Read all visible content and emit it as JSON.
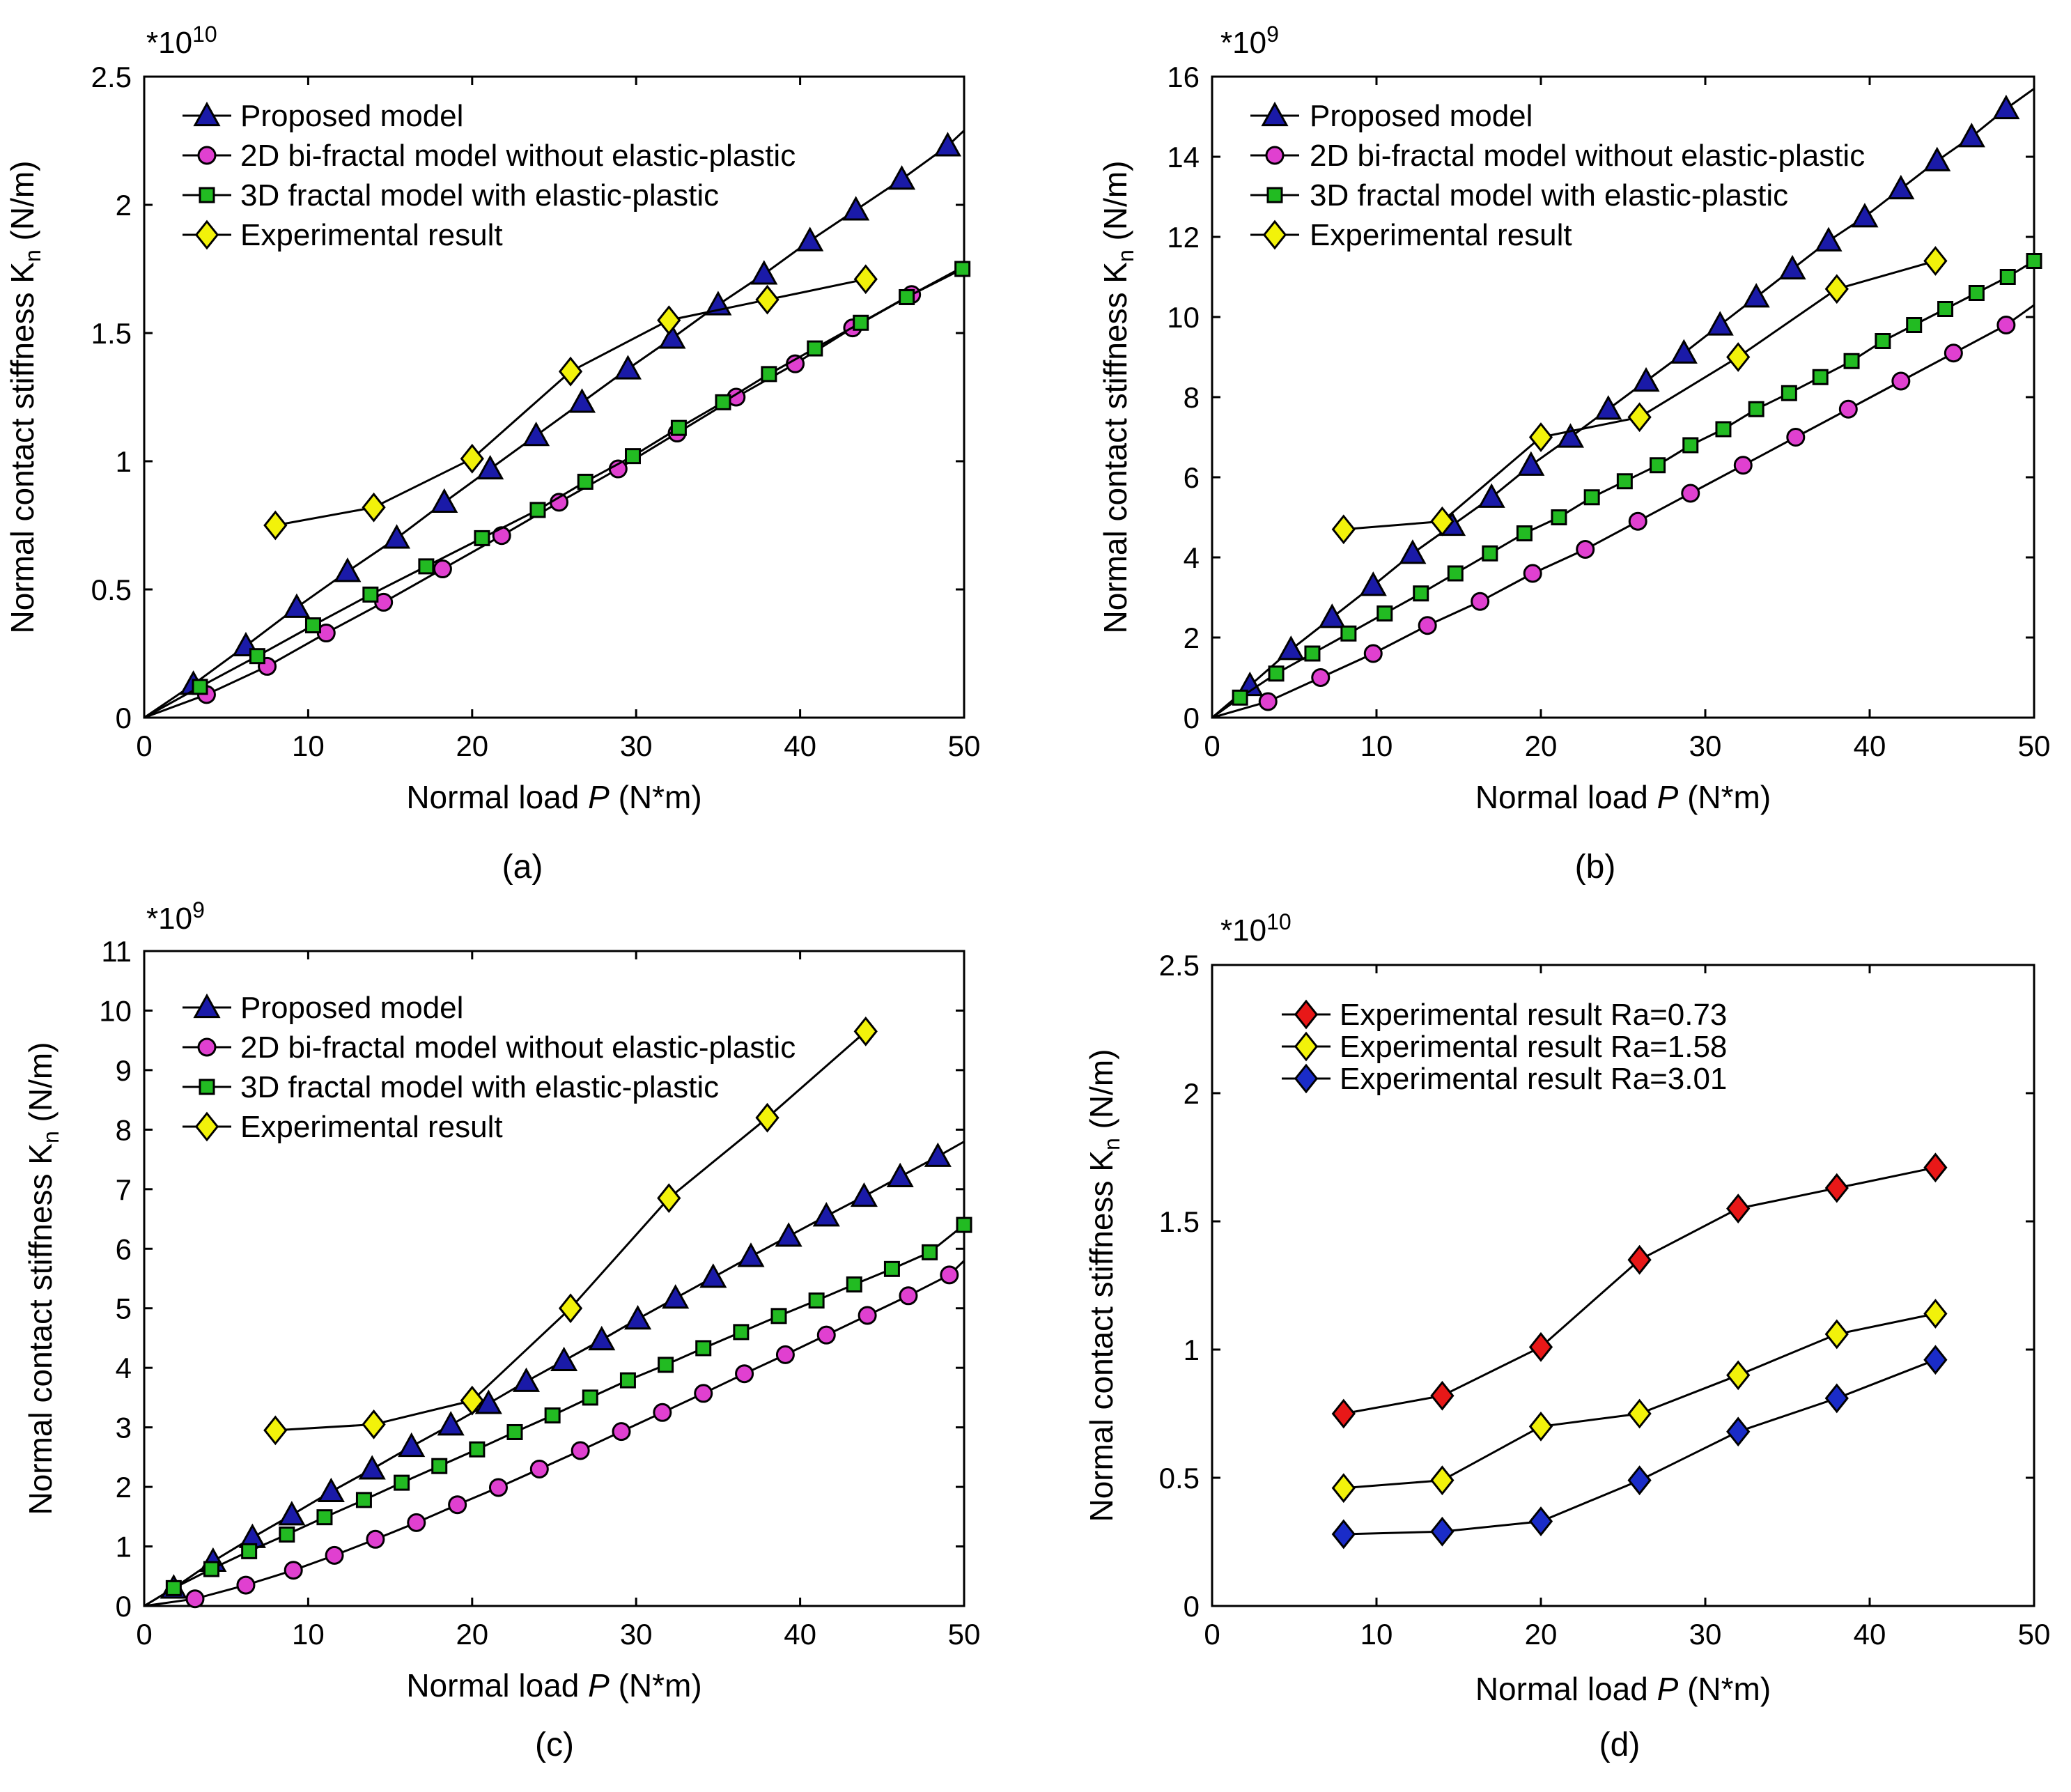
{
  "chart_data": [
    {
      "type": "line",
      "caption": "(a)",
      "multiplier": "*10",
      "multiplier_exp": "10",
      "xlabel": "Normal load P (N*m)",
      "xlabel_parts": [
        "Normal load ",
        "P",
        " (N*m)"
      ],
      "ylabel": "Normal contact stiffness Kn (N/m)",
      "ylabel_parts": [
        "Normal contact stiffness K",
        "n",
        " (N/m)"
      ],
      "xlim": [
        0,
        50
      ],
      "ylim": [
        0,
        2.5
      ],
      "xticks": [
        0,
        10,
        20,
        30,
        40,
        50
      ],
      "xtick_labels": [
        "0",
        "10",
        "20",
        "30",
        "40",
        "50"
      ],
      "yticks": [
        0,
        0.5,
        1,
        1.5,
        2,
        2.5
      ],
      "ytick_labels": [
        "0",
        "0.5",
        "1",
        "1.5",
        "2",
        "2.5"
      ],
      "legend_position": "top-left",
      "series": [
        {
          "name": "Proposed model",
          "marker": "triangle",
          "color": "#1a1aa8",
          "x": [
            0,
            3,
            6.2,
            9.3,
            12.4,
            15.4,
            18.3,
            21.1,
            23.9,
            26.7,
            29.5,
            32.2,
            35,
            37.8,
            40.6,
            43.4,
            46.2,
            49,
            50
          ],
          "y": [
            0,
            0.13,
            0.28,
            0.43,
            0.57,
            0.7,
            0.84,
            0.97,
            1.1,
            1.23,
            1.36,
            1.48,
            1.61,
            1.73,
            1.86,
            1.98,
            2.1,
            2.23,
            2.29
          ]
        },
        {
          "name": "2D bi-fractal model without elastic-plastic",
          "marker": "circle",
          "color": "#e040d0",
          "x": [
            0,
            3.8,
            7.5,
            11.1,
            14.6,
            18.2,
            21.8,
            25.3,
            28.9,
            32.5,
            36.1,
            39.7,
            43.2,
            46.8,
            50
          ],
          "y": [
            0,
            0.09,
            0.2,
            0.33,
            0.45,
            0.58,
            0.71,
            0.84,
            0.97,
            1.11,
            1.25,
            1.38,
            1.52,
            1.65,
            1.76
          ]
        },
        {
          "name": "3D fractal model with elastic-plastic",
          "marker": "square",
          "color": "#22bb22",
          "x": [
            0,
            3.4,
            6.9,
            10.3,
            13.8,
            17.2,
            20.6,
            24,
            26.9,
            29.8,
            32.6,
            35.3,
            38.1,
            40.9,
            43.7,
            46.5,
            49.9
          ],
          "y": [
            0,
            0.12,
            0.24,
            0.36,
            0.48,
            0.59,
            0.7,
            0.81,
            0.92,
            1.02,
            1.13,
            1.23,
            1.34,
            1.44,
            1.54,
            1.64,
            1.75
          ]
        },
        {
          "name": "Experimental result",
          "marker": "diamond",
          "color": "#f2f20a",
          "x": [
            8,
            14,
            20,
            26,
            32,
            38,
            44
          ],
          "y": [
            0.75,
            0.82,
            1.01,
            1.35,
            1.55,
            1.63,
            1.71
          ]
        }
      ]
    },
    {
      "type": "line",
      "caption": "(b)",
      "multiplier": "*10",
      "multiplier_exp": "9",
      "xlabel": "Normal load P (N*m)",
      "xlabel_parts": [
        "Normal load ",
        "P",
        " (N*m)"
      ],
      "ylabel": "Normal contact stiffness Kn (N/m)",
      "ylabel_parts": [
        "Normal contact stiffness K",
        "n",
        " (N/m)"
      ],
      "xlim": [
        0,
        50
      ],
      "ylim": [
        0,
        16
      ],
      "xticks": [
        0,
        10,
        20,
        30,
        40,
        50
      ],
      "xtick_labels": [
        "0",
        "10",
        "20",
        "30",
        "40",
        "50"
      ],
      "yticks": [
        0,
        2,
        4,
        6,
        8,
        10,
        12,
        14,
        16
      ],
      "ytick_labels": [
        "0",
        "2",
        "4",
        "6",
        "8",
        "10",
        "12",
        "14",
        "16"
      ],
      "legend_position": "top-left",
      "series": [
        {
          "name": "Proposed model",
          "marker": "triangle",
          "color": "#1a1aa8",
          "x": [
            0,
            2.3,
            4.8,
            7.3,
            9.8,
            12.2,
            14.6,
            17,
            19.4,
            21.8,
            24.1,
            26.4,
            28.7,
            30.9,
            33.1,
            35.3,
            37.5,
            39.7,
            41.9,
            44.1,
            46.2,
            48.3,
            50
          ],
          "y": [
            0,
            0.8,
            1.7,
            2.5,
            3.3,
            4.1,
            4.8,
            5.5,
            6.3,
            7,
            7.7,
            8.4,
            9.1,
            9.8,
            10.5,
            11.2,
            11.9,
            12.5,
            13.2,
            13.9,
            14.5,
            15.2,
            15.7
          ]
        },
        {
          "name": "2D bi-fractal model without elastic-plastic",
          "marker": "circle",
          "color": "#e040d0",
          "x": [
            0,
            3.4,
            6.6,
            9.8,
            13.1,
            16.3,
            19.5,
            22.7,
            25.9,
            29.1,
            32.3,
            35.5,
            38.7,
            41.9,
            45.1,
            48.3,
            50
          ],
          "y": [
            0,
            0.4,
            1,
            1.6,
            2.3,
            2.9,
            3.6,
            4.2,
            4.9,
            5.6,
            6.3,
            7,
            7.7,
            8.4,
            9.1,
            9.8,
            10.3
          ]
        },
        {
          "name": "3D fractal model with elastic-plastic",
          "marker": "square",
          "color": "#22bb22",
          "x": [
            0,
            1.7,
            3.9,
            6.1,
            8.3,
            10.5,
            12.7,
            14.8,
            16.9,
            19,
            21.1,
            23.1,
            25.1,
            27.1,
            29.1,
            31.1,
            33.1,
            35.1,
            37,
            38.9,
            40.8,
            42.7,
            44.6,
            46.5,
            48.4,
            50
          ],
          "y": [
            0,
            0.5,
            1.1,
            1.6,
            2.1,
            2.6,
            3.1,
            3.6,
            4.1,
            4.6,
            5,
            5.5,
            5.9,
            6.3,
            6.8,
            7.2,
            7.7,
            8.1,
            8.5,
            8.9,
            9.4,
            9.8,
            10.2,
            10.6,
            11,
            11.4
          ]
        },
        {
          "name": "Experimental result",
          "marker": "diamond",
          "color": "#f2f20a",
          "x": [
            8,
            14,
            20,
            26,
            32,
            38,
            44
          ],
          "y": [
            4.7,
            4.9,
            7,
            7.5,
            9,
            10.7,
            11.4
          ]
        }
      ]
    },
    {
      "type": "line",
      "caption": "(c)",
      "multiplier": "*10",
      "multiplier_exp": "9",
      "xlabel": "Normal load P (N*m)",
      "xlabel_parts": [
        "Normal load ",
        "P",
        " (N*m)"
      ],
      "ylabel": "Normal contact stiffness Kn (N/m)",
      "ylabel_parts": [
        "Normal contact stiffness K",
        "n",
        " (N/m)"
      ],
      "xlim": [
        0,
        50
      ],
      "ylim": [
        0,
        11
      ],
      "xticks": [
        0,
        10,
        20,
        30,
        40,
        50
      ],
      "xtick_labels": [
        "0",
        "10",
        "20",
        "30",
        "40",
        "50"
      ],
      "yticks": [
        0,
        1,
        2,
        3,
        4,
        5,
        6,
        7,
        8,
        9,
        10,
        11
      ],
      "ytick_labels": [
        "0",
        "1",
        "2",
        "3",
        "4",
        "5",
        "6",
        "7",
        "8",
        "9",
        "10",
        "11"
      ],
      "legend_position": "top-left",
      "series": [
        {
          "name": "Proposed model",
          "marker": "triangle",
          "color": "#1a1aa8",
          "x": [
            0,
            1.8,
            4.2,
            6.6,
            9,
            11.4,
            13.9,
            16.3,
            18.7,
            21,
            23.3,
            25.6,
            27.9,
            30.1,
            32.4,
            34.7,
            37,
            39.3,
            41.6,
            43.9,
            46.1,
            48.4,
            50
          ],
          "y": [
            0,
            0.3,
            0.75,
            1.15,
            1.53,
            1.92,
            2.3,
            2.68,
            3.04,
            3.4,
            3.77,
            4.12,
            4.47,
            4.82,
            5.17,
            5.52,
            5.87,
            6.21,
            6.55,
            6.88,
            7.21,
            7.55,
            7.8
          ]
        },
        {
          "name": "2D bi-fractal model without elastic-plastic",
          "marker": "circle",
          "color": "#e040d0",
          "x": [
            0,
            3.1,
            6.2,
            9.1,
            11.6,
            14.1,
            16.6,
            19.1,
            21.6,
            24.1,
            26.6,
            29.1,
            31.6,
            34.1,
            36.6,
            39.1,
            41.6,
            44.1,
            46.6,
            49.1,
            50
          ],
          "y": [
            0,
            0.12,
            0.35,
            0.6,
            0.85,
            1.12,
            1.4,
            1.7,
            1.99,
            2.3,
            2.61,
            2.93,
            3.25,
            3.57,
            3.9,
            4.22,
            4.55,
            4.88,
            5.21,
            5.56,
            5.8
          ]
        },
        {
          "name": "3D fractal model with elastic-plastic",
          "marker": "square",
          "color": "#22bb22",
          "x": [
            0,
            1.8,
            4.1,
            6.4,
            8.7,
            11,
            13.4,
            15.7,
            18,
            20.3,
            22.6,
            24.9,
            27.2,
            29.5,
            31.8,
            34.1,
            36.4,
            38.7,
            41,
            43.3,
            45.6,
            47.9,
            50
          ],
          "y": [
            0,
            0.3,
            0.62,
            0.92,
            1.2,
            1.49,
            1.78,
            2.07,
            2.35,
            2.63,
            2.92,
            3.2,
            3.5,
            3.79,
            4.05,
            4.33,
            4.6,
            4.87,
            5.13,
            5.4,
            5.66,
            5.94,
            6.4
          ]
        },
        {
          "name": "Experimental result",
          "marker": "diamond",
          "color": "#f2f20a",
          "x": [
            8,
            14,
            20,
            26,
            32,
            38,
            44
          ],
          "y": [
            2.95,
            3.05,
            3.45,
            5,
            6.85,
            8.2,
            9.65
          ]
        }
      ]
    },
    {
      "type": "line",
      "caption": "(d)",
      "multiplier": "*10",
      "multiplier_exp": "10",
      "xlabel": "Normal load P (N*m)",
      "xlabel_parts": [
        "Normal load ",
        "P",
        " (N*m)"
      ],
      "ylabel": "Normal contact stiffness Kn (N/m)",
      "ylabel_parts": [
        "Normal contact stiffness K",
        "n",
        " (N/m)"
      ],
      "xlim": [
        0,
        50
      ],
      "ylim": [
        0,
        2.5
      ],
      "xticks": [
        0,
        10,
        20,
        30,
        40,
        50
      ],
      "xtick_labels": [
        "0",
        "10",
        "20",
        "30",
        "40",
        "50"
      ],
      "yticks": [
        0,
        0.5,
        1,
        1.5,
        2,
        2.5
      ],
      "ytick_labels": [
        "0",
        "0.5",
        "1",
        "1.5",
        "2",
        "2.5"
      ],
      "legend_position": "top-left",
      "series": [
        {
          "name": "Experimental result Ra=0.73",
          "marker": "diamond",
          "color": "#e81818",
          "x": [
            8,
            14,
            20,
            26,
            32,
            38,
            44
          ],
          "y": [
            0.75,
            0.82,
            1.01,
            1.35,
            1.55,
            1.63,
            1.71
          ]
        },
        {
          "name": "Experimental result Ra=1.58",
          "marker": "diamond",
          "color": "#f2f20a",
          "x": [
            8,
            14,
            20,
            26,
            32,
            38,
            44
          ],
          "y": [
            0.46,
            0.49,
            0.7,
            0.75,
            0.9,
            1.06,
            1.14
          ]
        },
        {
          "name": "Experimental result Ra=3.01",
          "marker": "diamond",
          "color": "#1a2cc8",
          "x": [
            8,
            14,
            20,
            26,
            32,
            38,
            44
          ],
          "y": [
            0.28,
            0.29,
            0.33,
            0.49,
            0.68,
            0.81,
            0.96
          ]
        }
      ]
    }
  ]
}
